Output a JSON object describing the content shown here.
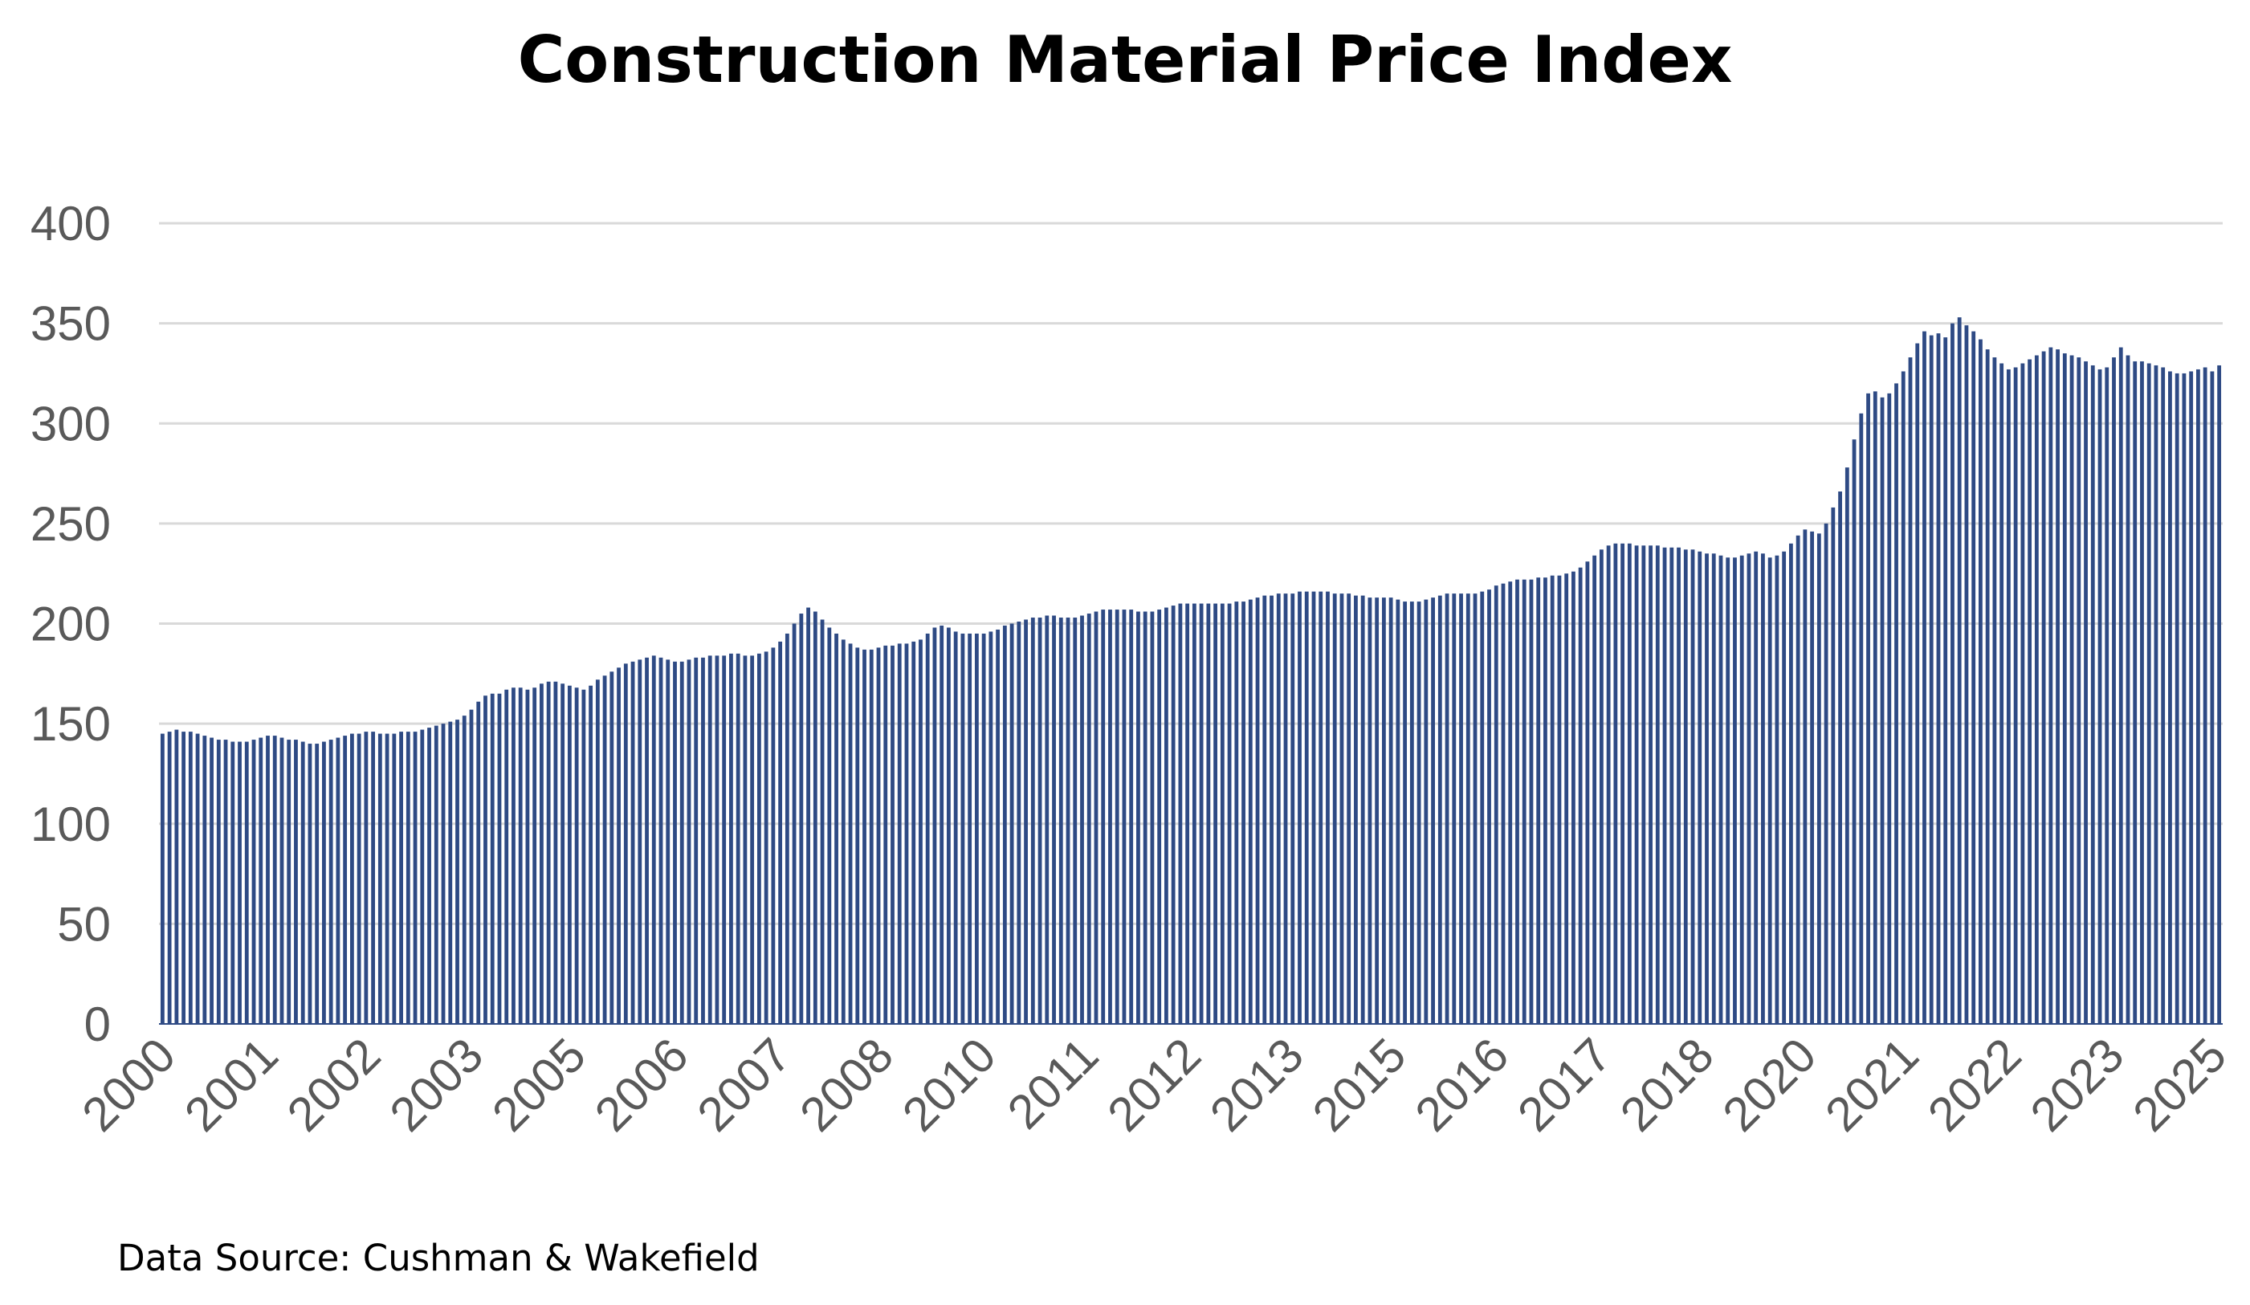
{
  "title": "Construction Material Price Index",
  "source": "Data Source: Cushman & Wakefield",
  "colors": {
    "bar": "#2e4a84",
    "grid": "#d9d9d9",
    "tick_text": "#595959"
  },
  "chart_data": {
    "type": "bar",
    "title": "Construction Material Price Index",
    "xlabel": "",
    "ylabel": "",
    "ylim": [
      0,
      400
    ],
    "y_ticks": [
      0,
      50,
      100,
      150,
      200,
      250,
      300,
      350,
      400
    ],
    "x_tick_labels": [
      "2000",
      "2001",
      "2002",
      "2003",
      "2005",
      "2006",
      "2007",
      "2008",
      "2010",
      "2011",
      "2012",
      "2013",
      "2015",
      "2016",
      "2017",
      "2018",
      "2020",
      "2021",
      "2022",
      "2023",
      "2025"
    ],
    "grid": true,
    "legend": "none",
    "frequency": "monthly",
    "values": [
      145,
      146,
      147,
      146,
      146,
      145,
      144,
      143,
      142,
      142,
      141,
      141,
      141,
      142,
      143,
      144,
      144,
      143,
      142,
      142,
      141,
      140,
      140,
      141,
      142,
      143,
      144,
      145,
      145,
      146,
      146,
      145,
      145,
      145,
      146,
      146,
      146,
      147,
      148,
      149,
      150,
      151,
      152,
      154,
      157,
      161,
      164,
      165,
      165,
      167,
      168,
      168,
      167,
      168,
      170,
      171,
      171,
      170,
      169,
      168,
      167,
      169,
      172,
      174,
      176,
      178,
      180,
      181,
      182,
      183,
      184,
      183,
      182,
      181,
      181,
      182,
      183,
      183,
      184,
      184,
      184,
      185,
      185,
      184,
      184,
      185,
      186,
      188,
      191,
      195,
      200,
      205,
      208,
      206,
      202,
      198,
      195,
      192,
      190,
      188,
      187,
      187,
      188,
      189,
      189,
      190,
      190,
      191,
      192,
      195,
      198,
      199,
      198,
      196,
      195,
      195,
      195,
      195,
      196,
      197,
      199,
      200,
      201,
      202,
      203,
      203,
      204,
      204,
      203,
      203,
      203,
      204,
      205,
      206,
      207,
      207,
      207,
      207,
      207,
      206,
      206,
      206,
      207,
      208,
      209,
      210,
      210,
      210,
      210,
      210,
      210,
      210,
      210,
      211,
      211,
      212,
      213,
      214,
      214,
      215,
      215,
      215,
      216,
      216,
      216,
      216,
      216,
      215,
      215,
      215,
      214,
      214,
      213,
      213,
      213,
      213,
      212,
      211,
      211,
      211,
      212,
      213,
      214,
      215,
      215,
      215,
      215,
      215,
      216,
      217,
      219,
      220,
      221,
      222,
      222,
      222,
      223,
      223,
      224,
      224,
      225,
      226,
      228,
      231,
      234,
      237,
      239,
      240,
      240,
      240,
      239,
      239,
      239,
      239,
      238,
      238,
      238,
      237,
      237,
      236,
      235,
      235,
      234,
      233,
      233,
      234,
      235,
      236,
      235,
      233,
      234,
      236,
      240,
      244,
      247,
      246,
      245,
      250,
      258,
      266,
      278,
      292,
      305,
      315,
      316,
      313,
      315,
      320,
      326,
      333,
      340,
      346,
      344,
      345,
      343,
      350,
      353,
      349,
      346,
      342,
      337,
      333,
      330,
      327,
      328,
      330,
      332,
      334,
      336,
      338,
      337,
      335,
      334,
      333,
      331,
      329,
      327,
      328,
      333,
      338,
      334,
      331,
      331,
      330,
      329,
      328,
      326,
      325,
      325,
      326,
      327,
      328,
      326,
      329
    ]
  }
}
